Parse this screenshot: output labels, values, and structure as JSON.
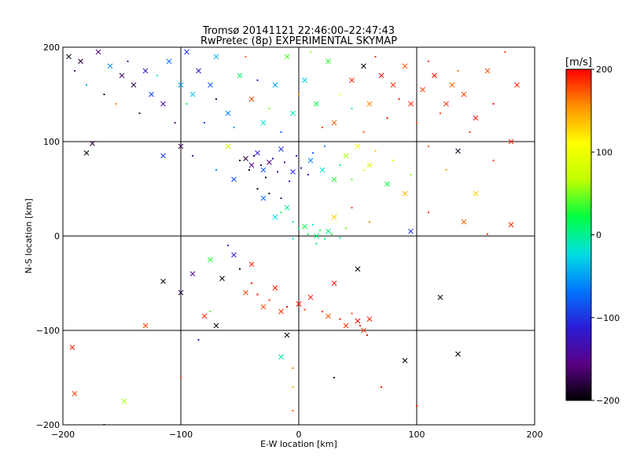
{
  "chart_data": {
    "type": "scatter",
    "title": "Tromsø 20141121 22:46:00–22:47:43",
    "subtitle": "RwPretec (8p) EXPERIMENTAL SKYMAP",
    "xlabel": "E-W location [km]",
    "ylabel": "N-S location [km]",
    "xlim": [
      -200,
      200
    ],
    "ylim": [
      -200,
      200
    ],
    "x_ticks": [
      -200,
      -100,
      0,
      100,
      200
    ],
    "y_ticks": [
      -200,
      -100,
      0,
      100,
      200
    ],
    "x_tick_labels": [
      "−200",
      "−100",
      "0",
      "100",
      "200"
    ],
    "y_tick_labels": [
      "−200",
      "−100",
      "0",
      "100",
      "200"
    ],
    "grid": true,
    "marker_types": [
      "cross",
      "dot"
    ],
    "colorbar": {
      "label": "[m/s]",
      "range": [
        -200,
        200
      ],
      "ticks": [
        -200,
        -100,
        0,
        100,
        200
      ],
      "tick_labels": [
        "−200",
        "−100",
        "0",
        "100",
        "200"
      ],
      "colors": [
        "#000000",
        "#5a0085",
        "#2a1cd8",
        "#0078ff",
        "#00e0e0",
        "#00ff40",
        "#c0ff00",
        "#ffff00",
        "#ff9000",
        "#ff0000"
      ]
    },
    "points": [
      {
        "x": -195,
        "y": 190,
        "v": -190,
        "m": "x"
      },
      {
        "x": -185,
        "y": 185,
        "v": -180,
        "m": "x"
      },
      {
        "x": -170,
        "y": 195,
        "v": -150,
        "m": "x"
      },
      {
        "x": -160,
        "y": 180,
        "v": -60,
        "m": "x"
      },
      {
        "x": -150,
        "y": 170,
        "v": -170,
        "m": "x"
      },
      {
        "x": -140,
        "y": 160,
        "v": -180,
        "m": "x"
      },
      {
        "x": -130,
        "y": 175,
        "v": -130,
        "m": "x"
      },
      {
        "x": -125,
        "y": 150,
        "v": -90,
        "m": "x"
      },
      {
        "x": -115,
        "y": 140,
        "v": -140,
        "m": "x"
      },
      {
        "x": -110,
        "y": 185,
        "v": -70,
        "m": "x"
      },
      {
        "x": -100,
        "y": 160,
        "v": -50,
        "m": "x"
      },
      {
        "x": -95,
        "y": 195,
        "v": -100,
        "m": "x"
      },
      {
        "x": -90,
        "y": 150,
        "v": -30,
        "m": "x"
      },
      {
        "x": -85,
        "y": 175,
        "v": -120,
        "m": "x"
      },
      {
        "x": -75,
        "y": 160,
        "v": -80,
        "m": "x"
      },
      {
        "x": -70,
        "y": 190,
        "v": -40,
        "m": "x"
      },
      {
        "x": -60,
        "y": 130,
        "v": -60,
        "m": "x"
      },
      {
        "x": -50,
        "y": 170,
        "v": 10,
        "m": "x"
      },
      {
        "x": -40,
        "y": 145,
        "v": 180,
        "m": "x"
      },
      {
        "x": -30,
        "y": 120,
        "v": -20,
        "m": "x"
      },
      {
        "x": -20,
        "y": 160,
        "v": -50,
        "m": "x"
      },
      {
        "x": -10,
        "y": 190,
        "v": 40,
        "m": "x"
      },
      {
        "x": -5,
        "y": 130,
        "v": -10,
        "m": "x"
      },
      {
        "x": 5,
        "y": 165,
        "v": -30,
        "m": "x"
      },
      {
        "x": 15,
        "y": 140,
        "v": 20,
        "m": "x"
      },
      {
        "x": 25,
        "y": 185,
        "v": 30,
        "m": "x"
      },
      {
        "x": 30,
        "y": 120,
        "v": 170,
        "m": "x"
      },
      {
        "x": 45,
        "y": 165,
        "v": 190,
        "m": "x"
      },
      {
        "x": 55,
        "y": 180,
        "v": -200,
        "m": "x"
      },
      {
        "x": 60,
        "y": 140,
        "v": 160,
        "m": "x"
      },
      {
        "x": 70,
        "y": 170,
        "v": 200,
        "m": "x"
      },
      {
        "x": 80,
        "y": 160,
        "v": 185,
        "m": "x"
      },
      {
        "x": 90,
        "y": 180,
        "v": 175,
        "m": "x"
      },
      {
        "x": 95,
        "y": 140,
        "v": 190,
        "m": "x"
      },
      {
        "x": 105,
        "y": 155,
        "v": 180,
        "m": "x"
      },
      {
        "x": 115,
        "y": 170,
        "v": 195,
        "m": "x"
      },
      {
        "x": 125,
        "y": 140,
        "v": 185,
        "m": "x"
      },
      {
        "x": 130,
        "y": 160,
        "v": 170,
        "m": "x"
      },
      {
        "x": 140,
        "y": 150,
        "v": 180,
        "m": "x"
      },
      {
        "x": 150,
        "y": 125,
        "v": 195,
        "m": "x"
      },
      {
        "x": 160,
        "y": 175,
        "v": 175,
        "m": "x"
      },
      {
        "x": 185,
        "y": 160,
        "v": 190,
        "m": "x"
      },
      {
        "x": -180,
        "y": 88,
        "v": -200,
        "m": "x"
      },
      {
        "x": -175,
        "y": 98,
        "v": -180,
        "m": "x"
      },
      {
        "x": -115,
        "y": 85,
        "v": -100,
        "m": "x"
      },
      {
        "x": -100,
        "y": 95,
        "v": -170,
        "m": "x"
      },
      {
        "x": -60,
        "y": 95,
        "v": 80,
        "m": "x"
      },
      {
        "x": -55,
        "y": 60,
        "v": -90,
        "m": "x"
      },
      {
        "x": -45,
        "y": 82,
        "v": -180,
        "m": "x"
      },
      {
        "x": -40,
        "y": 75,
        "v": -150,
        "m": "x"
      },
      {
        "x": -35,
        "y": 88,
        "v": -120,
        "m": "x"
      },
      {
        "x": -30,
        "y": 70,
        "v": -80,
        "m": "x"
      },
      {
        "x": -25,
        "y": 78,
        "v": -160,
        "m": "x"
      },
      {
        "x": -15,
        "y": 92,
        "v": -100,
        "m": "x"
      },
      {
        "x": -5,
        "y": 68,
        "v": -110,
        "m": "x"
      },
      {
        "x": 10,
        "y": 80,
        "v": -60,
        "m": "x"
      },
      {
        "x": 20,
        "y": 70,
        "v": -20,
        "m": "x"
      },
      {
        "x": 30,
        "y": 60,
        "v": 30,
        "m": "x"
      },
      {
        "x": 40,
        "y": 85,
        "v": 60,
        "m": "x"
      },
      {
        "x": 50,
        "y": 95,
        "v": 110,
        "m": "x"
      },
      {
        "x": 60,
        "y": 75,
        "v": 90,
        "m": "x"
      },
      {
        "x": 75,
        "y": 55,
        "v": 20,
        "m": "x"
      },
      {
        "x": 90,
        "y": 45,
        "v": 140,
        "m": "x"
      },
      {
        "x": 135,
        "y": 90,
        "v": -190,
        "m": "x"
      },
      {
        "x": 150,
        "y": 45,
        "v": 130,
        "m": "x"
      },
      {
        "x": 180,
        "y": 100,
        "v": 190,
        "m": "x"
      },
      {
        "x": -30,
        "y": 40,
        "v": -70,
        "m": "x"
      },
      {
        "x": -20,
        "y": 20,
        "v": -20,
        "m": "x"
      },
      {
        "x": -10,
        "y": 30,
        "v": 0,
        "m": "x"
      },
      {
        "x": 5,
        "y": 10,
        "v": 20,
        "m": "x"
      },
      {
        "x": 15,
        "y": 0,
        "v": 10,
        "m": "x"
      },
      {
        "x": 25,
        "y": 5,
        "v": 5,
        "m": "x"
      },
      {
        "x": 30,
        "y": 20,
        "v": 130,
        "m": "x"
      },
      {
        "x": 95,
        "y": 5,
        "v": -100,
        "m": "x"
      },
      {
        "x": 140,
        "y": 15,
        "v": 170,
        "m": "x"
      },
      {
        "x": 180,
        "y": 12,
        "v": 190,
        "m": "x"
      },
      {
        "x": -115,
        "y": -48,
        "v": -200,
        "m": "x"
      },
      {
        "x": -100,
        "y": -60,
        "v": -180,
        "m": "x"
      },
      {
        "x": -90,
        "y": -40,
        "v": -140,
        "m": "x"
      },
      {
        "x": -75,
        "y": -25,
        "v": 30,
        "m": "x"
      },
      {
        "x": -65,
        "y": -45,
        "v": -200,
        "m": "x"
      },
      {
        "x": -55,
        "y": -20,
        "v": -110,
        "m": "x"
      },
      {
        "x": -45,
        "y": -60,
        "v": 180,
        "m": "x"
      },
      {
        "x": -40,
        "y": -30,
        "v": 190,
        "m": "x"
      },
      {
        "x": -30,
        "y": -75,
        "v": 175,
        "m": "x"
      },
      {
        "x": -20,
        "y": -55,
        "v": 195,
        "m": "x"
      },
      {
        "x": -15,
        "y": -80,
        "v": 185,
        "m": "x"
      },
      {
        "x": 0,
        "y": -72,
        "v": 200,
        "m": "x"
      },
      {
        "x": 10,
        "y": -65,
        "v": 190,
        "m": "x"
      },
      {
        "x": 25,
        "y": -85,
        "v": 175,
        "m": "x"
      },
      {
        "x": 30,
        "y": -50,
        "v": 195,
        "m": "x"
      },
      {
        "x": 40,
        "y": -95,
        "v": 185,
        "m": "x"
      },
      {
        "x": 50,
        "y": -90,
        "v": 200,
        "m": "x"
      },
      {
        "x": 55,
        "y": -100,
        "v": 180,
        "m": "x"
      },
      {
        "x": 60,
        "y": -88,
        "v": 190,
        "m": "x"
      },
      {
        "x": 50,
        "y": -35,
        "v": -200,
        "m": "x"
      },
      {
        "x": -70,
        "y": -95,
        "v": -200,
        "m": "x"
      },
      {
        "x": -80,
        "y": -85,
        "v": 185,
        "m": "x"
      },
      {
        "x": -130,
        "y": -95,
        "v": 180,
        "m": "x"
      },
      {
        "x": -10,
        "y": -105,
        "v": -200,
        "m": "x"
      },
      {
        "x": -15,
        "y": -128,
        "v": 0,
        "m": "x"
      },
      {
        "x": 90,
        "y": -132,
        "v": -200,
        "m": "x"
      },
      {
        "x": 120,
        "y": -65,
        "v": -200,
        "m": "x"
      },
      {
        "x": 135,
        "y": -125,
        "v": -200,
        "m": "x"
      },
      {
        "x": -192,
        "y": -118,
        "v": 190,
        "m": "x"
      },
      {
        "x": -190,
        "y": -167,
        "v": 180,
        "m": "x"
      },
      {
        "x": -148,
        "y": -175,
        "v": 60,
        "m": "x"
      },
      {
        "x": -190,
        "y": 175,
        "v": -160,
        "m": "."
      },
      {
        "x": -180,
        "y": 160,
        "v": -40,
        "m": "."
      },
      {
        "x": -165,
        "y": 150,
        "v": -200,
        "m": "."
      },
      {
        "x": -155,
        "y": 140,
        "v": 160,
        "m": "."
      },
      {
        "x": -145,
        "y": 185,
        "v": -120,
        "m": "."
      },
      {
        "x": -135,
        "y": 130,
        "v": -180,
        "m": "."
      },
      {
        "x": -120,
        "y": 170,
        "v": -20,
        "m": "."
      },
      {
        "x": -105,
        "y": 120,
        "v": -160,
        "m": "."
      },
      {
        "x": -95,
        "y": 140,
        "v": 20,
        "m": "."
      },
      {
        "x": -80,
        "y": 120,
        "v": -90,
        "m": "."
      },
      {
        "x": -70,
        "y": 145,
        "v": -170,
        "m": "."
      },
      {
        "x": -55,
        "y": 115,
        "v": -50,
        "m": "."
      },
      {
        "x": -45,
        "y": 190,
        "v": 170,
        "m": "."
      },
      {
        "x": -35,
        "y": 165,
        "v": -100,
        "m": "."
      },
      {
        "x": -25,
        "y": 135,
        "v": 50,
        "m": "."
      },
      {
        "x": -15,
        "y": 110,
        "v": -70,
        "m": "."
      },
      {
        "x": 0,
        "y": 150,
        "v": 150,
        "m": "."
      },
      {
        "x": 10,
        "y": 195,
        "v": 60,
        "m": "."
      },
      {
        "x": 20,
        "y": 115,
        "v": 180,
        "m": "."
      },
      {
        "x": 35,
        "y": 150,
        "v": 100,
        "m": "."
      },
      {
        "x": 45,
        "y": 135,
        "v": -20,
        "m": "."
      },
      {
        "x": 55,
        "y": 110,
        "v": 170,
        "m": "."
      },
      {
        "x": 65,
        "y": 190,
        "v": 185,
        "m": "."
      },
      {
        "x": 75,
        "y": 125,
        "v": 200,
        "m": "."
      },
      {
        "x": 85,
        "y": 145,
        "v": 190,
        "m": "."
      },
      {
        "x": 100,
        "y": 120,
        "v": 175,
        "m": "."
      },
      {
        "x": 110,
        "y": 185,
        "v": 195,
        "m": "."
      },
      {
        "x": 120,
        "y": 130,
        "v": 180,
        "m": "."
      },
      {
        "x": 135,
        "y": 175,
        "v": 165,
        "m": "."
      },
      {
        "x": 145,
        "y": 110,
        "v": 185,
        "m": "."
      },
      {
        "x": 165,
        "y": 140,
        "v": 195,
        "m": "."
      },
      {
        "x": 175,
        "y": 195,
        "v": 180,
        "m": "."
      },
      {
        "x": -50,
        "y": 80,
        "v": -200,
        "m": "."
      },
      {
        "x": -42,
        "y": 70,
        "v": -190,
        "m": "."
      },
      {
        "x": -38,
        "y": 85,
        "v": -180,
        "m": "."
      },
      {
        "x": -32,
        "y": 75,
        "v": -170,
        "m": "."
      },
      {
        "x": -28,
        "y": 62,
        "v": -200,
        "m": "."
      },
      {
        "x": -22,
        "y": 82,
        "v": -140,
        "m": "."
      },
      {
        "x": -18,
        "y": 68,
        "v": -150,
        "m": "."
      },
      {
        "x": -12,
        "y": 78,
        "v": -160,
        "m": "."
      },
      {
        "x": -8,
        "y": 58,
        "v": -130,
        "m": "."
      },
      {
        "x": -2,
        "y": 85,
        "v": -120,
        "m": "."
      },
      {
        "x": 2,
        "y": 72,
        "v": -140,
        "m": "."
      },
      {
        "x": 8,
        "y": 65,
        "v": -110,
        "m": "."
      },
      {
        "x": -35,
        "y": 50,
        "v": -190,
        "m": "."
      },
      {
        "x": -25,
        "y": 45,
        "v": -200,
        "m": "."
      },
      {
        "x": -15,
        "y": 40,
        "v": -170,
        "m": "."
      },
      {
        "x": 12,
        "y": 88,
        "v": -80,
        "m": "."
      },
      {
        "x": 22,
        "y": 95,
        "v": -60,
        "m": "."
      },
      {
        "x": 35,
        "y": 75,
        "v": 10,
        "m": "."
      },
      {
        "x": 45,
        "y": 60,
        "v": 40,
        "m": "."
      },
      {
        "x": 55,
        "y": 70,
        "v": 70,
        "m": "."
      },
      {
        "x": 65,
        "y": 90,
        "v": 130,
        "m": "."
      },
      {
        "x": 80,
        "y": 80,
        "v": 110,
        "m": "."
      },
      {
        "x": 95,
        "y": 65,
        "v": 60,
        "m": "."
      },
      {
        "x": 110,
        "y": 95,
        "v": 170,
        "m": "."
      },
      {
        "x": 125,
        "y": 70,
        "v": 150,
        "m": "."
      },
      {
        "x": 165,
        "y": 80,
        "v": 180,
        "m": "."
      },
      {
        "x": -90,
        "y": 85,
        "v": -150,
        "m": "."
      },
      {
        "x": -70,
        "y": 70,
        "v": -60,
        "m": "."
      },
      {
        "x": -15,
        "y": 25,
        "v": 10,
        "m": "."
      },
      {
        "x": -5,
        "y": 15,
        "v": 0,
        "m": "."
      },
      {
        "x": 0,
        "y": 8,
        "v": 5,
        "m": "."
      },
      {
        "x": 8,
        "y": 2,
        "v": 15,
        "m": "."
      },
      {
        "x": 12,
        "y": 12,
        "v": -10,
        "m": "."
      },
      {
        "x": 18,
        "y": 6,
        "v": 20,
        "m": "."
      },
      {
        "x": 22,
        "y": -3,
        "v": 10,
        "m": "."
      },
      {
        "x": 28,
        "y": 2,
        "v": 30,
        "m": "."
      },
      {
        "x": 35,
        "y": -2,
        "v": 0,
        "m": "."
      },
      {
        "x": 40,
        "y": 8,
        "v": 50,
        "m": "."
      },
      {
        "x": -5,
        "y": -3,
        "v": -20,
        "m": "."
      },
      {
        "x": 15,
        "y": -8,
        "v": 10,
        "m": "."
      },
      {
        "x": 45,
        "y": 30,
        "v": 180,
        "m": "."
      },
      {
        "x": 60,
        "y": 15,
        "v": 160,
        "m": "."
      },
      {
        "x": 110,
        "y": 25,
        "v": 190,
        "m": "."
      },
      {
        "x": 160,
        "y": 2,
        "v": 185,
        "m": "."
      },
      {
        "x": -60,
        "y": -10,
        "v": -120,
        "m": "."
      },
      {
        "x": -50,
        "y": -35,
        "v": -180,
        "m": "."
      },
      {
        "x": -40,
        "y": -50,
        "v": 190,
        "m": "."
      },
      {
        "x": -35,
        "y": -62,
        "v": 200,
        "m": "."
      },
      {
        "x": -25,
        "y": -68,
        "v": 185,
        "m": "."
      },
      {
        "x": -10,
        "y": -75,
        "v": 195,
        "m": "."
      },
      {
        "x": 5,
        "y": -78,
        "v": 180,
        "m": "."
      },
      {
        "x": 20,
        "y": -80,
        "v": 190,
        "m": "."
      },
      {
        "x": 35,
        "y": -88,
        "v": 200,
        "m": "."
      },
      {
        "x": 45,
        "y": -82,
        "v": 175,
        "m": "."
      },
      {
        "x": 52,
        "y": -95,
        "v": 185,
        "m": "."
      },
      {
        "x": 58,
        "y": -105,
        "v": 195,
        "m": "."
      },
      {
        "x": -75,
        "y": -80,
        "v": 40,
        "m": "."
      },
      {
        "x": -85,
        "y": -110,
        "v": -120,
        "m": "."
      },
      {
        "x": -5,
        "y": -140,
        "v": 160,
        "m": "."
      },
      {
        "x": -5,
        "y": -160,
        "v": 140,
        "m": "."
      },
      {
        "x": -5,
        "y": -185,
        "v": 170,
        "m": "."
      },
      {
        "x": 70,
        "y": -160,
        "v": 190,
        "m": "."
      },
      {
        "x": 30,
        "y": -150,
        "v": -200,
        "m": "."
      },
      {
        "x": -100,
        "y": -150,
        "v": 180,
        "m": "."
      },
      {
        "x": -165,
        "y": -200,
        "v": -200,
        "m": "."
      },
      {
        "x": 100,
        "y": -180,
        "v": 190,
        "m": "."
      }
    ]
  }
}
